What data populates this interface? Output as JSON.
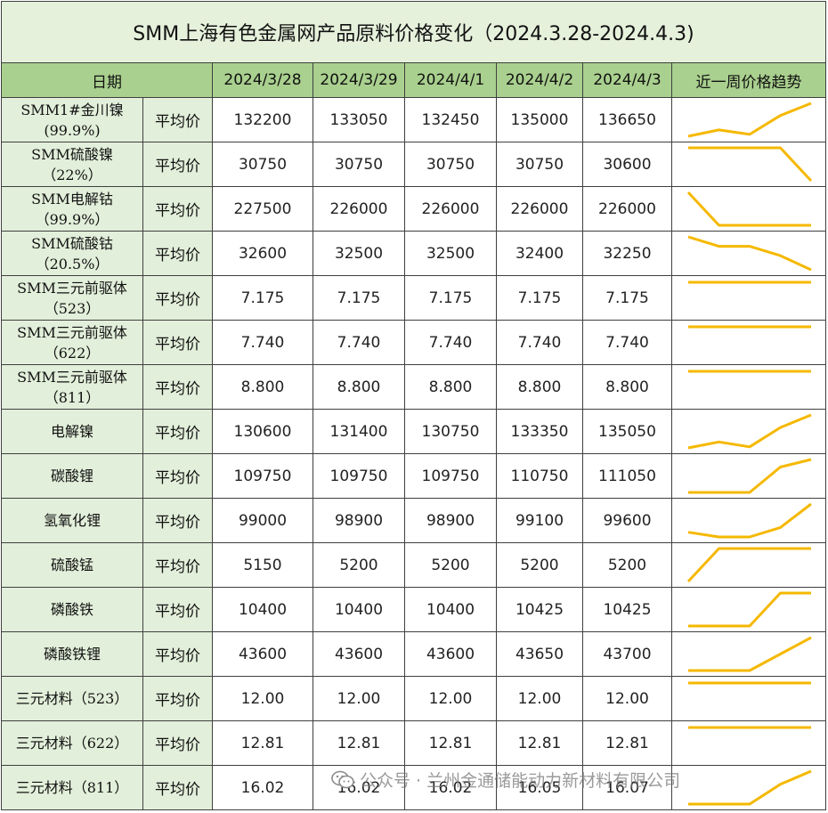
{
  "title": "SMM上海有色金属网产品原料价格变化（2024.3.28-2024.4.3)",
  "header": {
    "date_label": "日期",
    "dates": [
      "2024/3/28",
      "2024/3/29",
      "2024/4/1",
      "2024/4/2",
      "2024/4/3"
    ],
    "trend_label": "近一周价格趋势"
  },
  "accent_color": "#f5b800",
  "rows": [
    {
      "name_line1": "SMM1#金川镍",
      "name_line2": "(99.9%)",
      "label": "平均价",
      "values": [
        "132200",
        "133050",
        "132450",
        "135000",
        "136650"
      ],
      "trend": [
        132200,
        133050,
        132450,
        135000,
        136650
      ]
    },
    {
      "name_line1": "SMM硫酸镍",
      "name_line2": "（22%）",
      "label": "平均价",
      "values": [
        "30750",
        "30750",
        "30750",
        "30750",
        "30600"
      ],
      "trend": [
        30750,
        30750,
        30750,
        30750,
        30600
      ]
    },
    {
      "name_line1": "SMM电解钴",
      "name_line2": "（99.9%）",
      "label": "平均价",
      "values": [
        "227500",
        "226000",
        "226000",
        "226000",
        "226000"
      ],
      "trend": [
        227500,
        226000,
        226000,
        226000,
        226000
      ]
    },
    {
      "name_line1": "SMM硫酸钴",
      "name_line2": "（20.5%）",
      "label": "平均价",
      "values": [
        "32600",
        "32500",
        "32500",
        "32400",
        "32250"
      ],
      "trend": [
        32600,
        32500,
        32500,
        32400,
        32250
      ]
    },
    {
      "name_line1": "SMM三元前驱体",
      "name_line2": "（523）",
      "label": "平均价",
      "values": [
        "7.175",
        "7.175",
        "7.175",
        "7.175",
        "7.175"
      ],
      "trend": [
        7.175,
        7.175,
        7.175,
        7.175,
        7.175
      ]
    },
    {
      "name_line1": "SMM三元前驱体",
      "name_line2": "（622）",
      "label": "平均价",
      "values": [
        "7.740",
        "7.740",
        "7.740",
        "7.740",
        "7.740"
      ],
      "trend": [
        7.74,
        7.74,
        7.74,
        7.74,
        7.74
      ]
    },
    {
      "name_line1": "SMM三元前驱体",
      "name_line2": "（811）",
      "label": "平均价",
      "values": [
        "8.800",
        "8.800",
        "8.800",
        "8.800",
        "8.800"
      ],
      "trend": [
        8.8,
        8.8,
        8.8,
        8.8,
        8.8
      ]
    },
    {
      "name_line1": "电解镍",
      "name_line2": "",
      "label": "平均价",
      "values": [
        "130600",
        "131400",
        "130750",
        "133350",
        "135050"
      ],
      "trend": [
        130600,
        131400,
        130750,
        133350,
        135050
      ]
    },
    {
      "name_line1": "碳酸锂",
      "name_line2": "",
      "label": "平均价",
      "values": [
        "109750",
        "109750",
        "109750",
        "110750",
        "111050"
      ],
      "trend": [
        109750,
        109750,
        109750,
        110750,
        111050
      ]
    },
    {
      "name_line1": "氢氧化锂",
      "name_line2": "",
      "label": "平均价",
      "values": [
        "99000",
        "98900",
        "98900",
        "99100",
        "99600"
      ],
      "trend": [
        99000,
        98900,
        98900,
        99100,
        99600
      ]
    },
    {
      "name_line1": "硫酸锰",
      "name_line2": "",
      "label": "平均价",
      "values": [
        "5150",
        "5200",
        "5200",
        "5200",
        "5200"
      ],
      "trend": [
        5150,
        5200,
        5200,
        5200,
        5200
      ]
    },
    {
      "name_line1": "磷酸铁",
      "name_line2": "",
      "label": "平均价",
      "values": [
        "10400",
        "10400",
        "10400",
        "10425",
        "10425"
      ],
      "trend": [
        10400,
        10400,
        10400,
        10425,
        10425
      ]
    },
    {
      "name_line1": "磷酸铁锂",
      "name_line2": "",
      "label": "平均价",
      "values": [
        "43600",
        "43600",
        "43600",
        "43650",
        "43700"
      ],
      "trend": [
        43600,
        43600,
        43600,
        43650,
        43700
      ]
    },
    {
      "name_line1": "三元材料（523）",
      "name_line2": "",
      "label": "平均价",
      "values": [
        "12.00",
        "12.00",
        "12.00",
        "12.00",
        "12.00"
      ],
      "trend": [
        12.0,
        12.0,
        12.0,
        12.0,
        12.0
      ]
    },
    {
      "name_line1": "三元材料（622）",
      "name_line2": "",
      "label": "平均价",
      "values": [
        "12.81",
        "12.81",
        "12.81",
        "12.81",
        "12.81"
      ],
      "trend": [
        12.81,
        12.81,
        12.81,
        12.81,
        12.81
      ]
    },
    {
      "name_line1": "三元材料（811）",
      "name_line2": "",
      "label": "平均价",
      "values": [
        "16.02",
        "16.02",
        "16.02",
        "16.05",
        "16.07"
      ],
      "trend": [
        16.02,
        16.02,
        16.02,
        16.05,
        16.07
      ]
    }
  ],
  "watermark": {
    "text": "公众号 · 兰州金通储能动力新材料有限公司",
    "icon": "wechat-icon"
  }
}
